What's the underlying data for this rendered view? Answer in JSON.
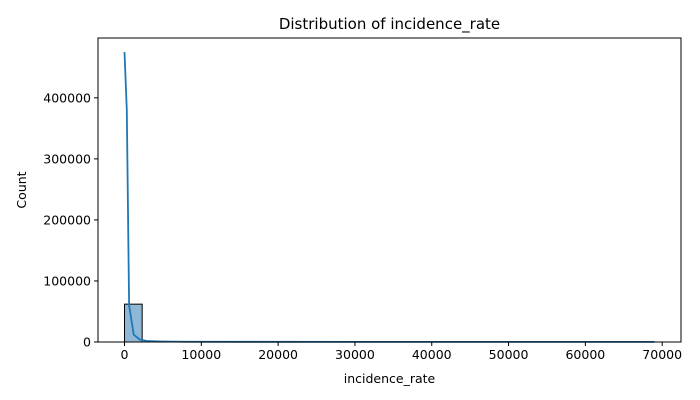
{
  "chart_data": {
    "type": "histogram",
    "title": "Distribution of incidence_rate",
    "xlabel": "incidence_rate",
    "ylabel": "Count",
    "xlim": [
      -3450,
      72450
    ],
    "ylim": [
      0,
      498000
    ],
    "x_ticks": [
      0,
      10000,
      20000,
      30000,
      40000,
      50000,
      60000,
      70000
    ],
    "x_tick_labels": [
      "0",
      "10000",
      "20000",
      "30000",
      "40000",
      "50000",
      "60000",
      "70000"
    ],
    "y_ticks": [
      0,
      100000,
      200000,
      300000,
      400000
    ],
    "y_tick_labels": [
      "0",
      "100000",
      "200000",
      "300000",
      "400000"
    ],
    "grid": false,
    "legend": false,
    "bins": [
      {
        "x_start": 0,
        "x_end": 2300,
        "count": 62000
      }
    ],
    "kde": {
      "x": [
        0,
        300,
        600,
        1200,
        2000,
        3000,
        5000,
        8000,
        15000,
        30000,
        50000,
        69000
      ],
      "y": [
        475000,
        380000,
        60000,
        12000,
        4000,
        1500,
        800,
        400,
        300,
        250,
        200,
        150
      ]
    },
    "colors": {
      "bar_fill": "#8fb7d6",
      "bar_edge": "#000000",
      "kde_line": "#1f77b4",
      "axis": "#000000"
    }
  }
}
